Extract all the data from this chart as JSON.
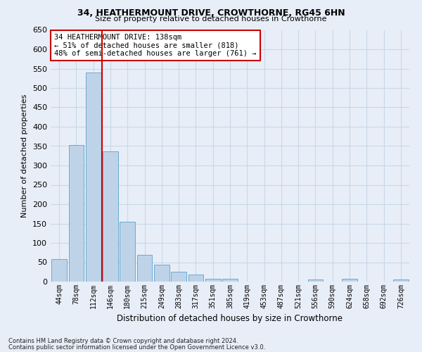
{
  "title1": "34, HEATHERMOUNT DRIVE, CROWTHORNE, RG45 6HN",
  "title2": "Size of property relative to detached houses in Crowthorne",
  "xlabel": "Distribution of detached houses by size in Crowthorne",
  "ylabel": "Number of detached properties",
  "bins": [
    "44sqm",
    "78sqm",
    "112sqm",
    "146sqm",
    "180sqm",
    "215sqm",
    "249sqm",
    "283sqm",
    "317sqm",
    "351sqm",
    "385sqm",
    "419sqm",
    "453sqm",
    "487sqm",
    "521sqm",
    "556sqm",
    "590sqm",
    "624sqm",
    "658sqm",
    "692sqm",
    "726sqm"
  ],
  "values": [
    58,
    352,
    540,
    337,
    155,
    70,
    43,
    26,
    18,
    8,
    8,
    0,
    0,
    0,
    0,
    5,
    0,
    8,
    0,
    0,
    5
  ],
  "bar_color": "#bed3e8",
  "bar_edge_color": "#6aaad4",
  "vline_color": "#cc0000",
  "annotation_text": "34 HEATHERMOUNT DRIVE: 138sqm\n← 51% of detached houses are smaller (818)\n48% of semi-detached houses are larger (761) →",
  "annotation_box_color": "#ffffff",
  "annotation_box_edge": "#cc0000",
  "ylim": [
    0,
    650
  ],
  "yticks": [
    0,
    50,
    100,
    150,
    200,
    250,
    300,
    350,
    400,
    450,
    500,
    550,
    600,
    650
  ],
  "grid_color": "#c8d8e8",
  "background_color": "#e8eef8",
  "footnote1": "Contains HM Land Registry data © Crown copyright and database right 2024.",
  "footnote2": "Contains public sector information licensed under the Open Government Licence v3.0."
}
